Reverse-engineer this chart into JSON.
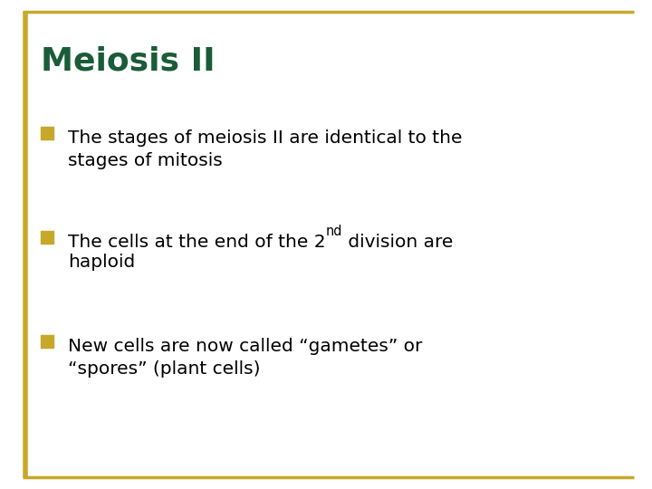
{
  "title": "Meiosis II",
  "title_color": "#1a5c38",
  "title_fontsize": 26,
  "background_color": "#ffffff",
  "border_color": "#c8a82a",
  "bullet_color": "#c8a82a",
  "text_color": "#000000",
  "text_fontsize": 14.5,
  "bullets": [
    {
      "parts": [
        {
          "text": "The stages of meiosis II are identical to the\nstages of mitosis",
          "super": false
        }
      ]
    },
    {
      "parts": [
        {
          "text": "The cells at the end of the 2",
          "super": false
        },
        {
          "text": "nd",
          "super": true
        },
        {
          "text": " division are\nhaploid",
          "super": false
        }
      ]
    },
    {
      "parts": [
        {
          "text": "New cells are now called “gametes” or\n“spores” (plant cells)",
          "super": false
        }
      ]
    }
  ]
}
